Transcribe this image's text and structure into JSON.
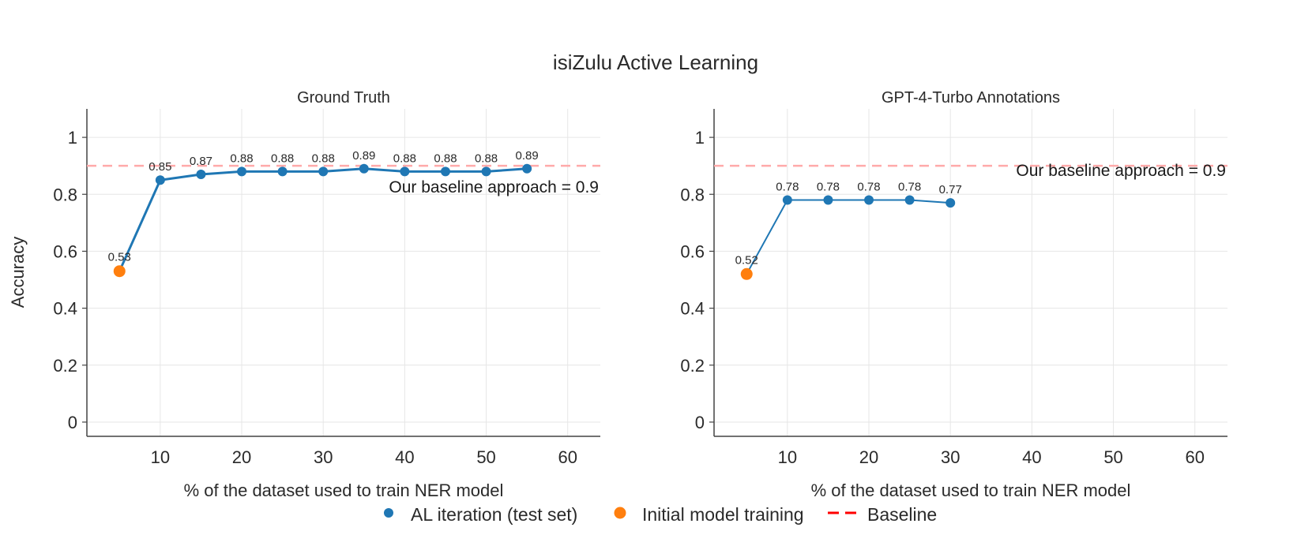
{
  "figure": {
    "title": "isiZulu Active Learning",
    "ylabel": "Accuracy",
    "legend": {
      "placement": "bottom-center",
      "entries": [
        {
          "label": "AL iteration (test set)",
          "color": "#1f77b4",
          "marker": "circle"
        },
        {
          "label": "Initial model training",
          "color": "#ff7f0e",
          "marker": "circle"
        },
        {
          "label": "Baseline",
          "color": "#ff0000",
          "marker": "dashed-line"
        }
      ]
    },
    "colors": {
      "al": "#1f77b4",
      "initial": "#ff7f0e",
      "baseline": "#ffaaaa"
    }
  },
  "chart_data": [
    {
      "type": "line",
      "title": "Ground Truth",
      "xlabel": "% of the dataset used to train NER model",
      "ylabel": "Accuracy",
      "xlim": [
        1,
        64
      ],
      "ylim": [
        -0.05,
        1.1
      ],
      "xticks": [
        10,
        20,
        30,
        40,
        50,
        60
      ],
      "yticks": [
        0,
        0.2,
        0.4,
        0.6,
        0.8,
        1
      ],
      "ytick_labels": [
        "0",
        "0.2",
        "0.4",
        "0.6",
        "0.8",
        "1"
      ],
      "grid": true,
      "initial": {
        "name": "Initial model training",
        "x": 5,
        "y": 0.53,
        "label": "0.53"
      },
      "series": [
        {
          "name": "AL iteration (test set)",
          "x": [
            10,
            15,
            20,
            25,
            30,
            35,
            40,
            45,
            50,
            55
          ],
          "y": [
            0.85,
            0.87,
            0.88,
            0.88,
            0.88,
            0.89,
            0.88,
            0.88,
            0.88,
            0.89
          ],
          "labels": [
            "0.85",
            "0.87",
            "0.88",
            "0.88",
            "0.88",
            "0.89",
            "0.88",
            "0.88",
            "0.88",
            "0.89"
          ]
        }
      ],
      "baseline": {
        "name": "Baseline",
        "y": 0.9,
        "text": "Our baseline approach = 0.9"
      }
    },
    {
      "type": "line",
      "title": "GPT-4-Turbo Annotations",
      "xlabel": "% of the dataset used to train NER model",
      "ylabel": "",
      "xlim": [
        1,
        64
      ],
      "ylim": [
        -0.05,
        1.1
      ],
      "xticks": [
        10,
        20,
        30,
        40,
        50,
        60
      ],
      "yticks": [
        0,
        0.2,
        0.4,
        0.6,
        0.8,
        1
      ],
      "ytick_labels": [
        "0",
        "0.2",
        "0.4",
        "0.6",
        "0.8",
        "1"
      ],
      "grid": true,
      "initial": {
        "name": "Initial model training",
        "x": 5,
        "y": 0.52,
        "label": "0.52"
      },
      "series": [
        {
          "name": "AL iteration (test set)",
          "x": [
            10,
            15,
            20,
            25,
            30
          ],
          "y": [
            0.78,
            0.78,
            0.78,
            0.78,
            0.77
          ],
          "labels": [
            "0.78",
            "0.78",
            "0.78",
            "0.78",
            "0.77"
          ]
        }
      ],
      "baseline": {
        "name": "Baseline",
        "y": 0.9,
        "text": "Our baseline approach = 0.9"
      }
    }
  ]
}
